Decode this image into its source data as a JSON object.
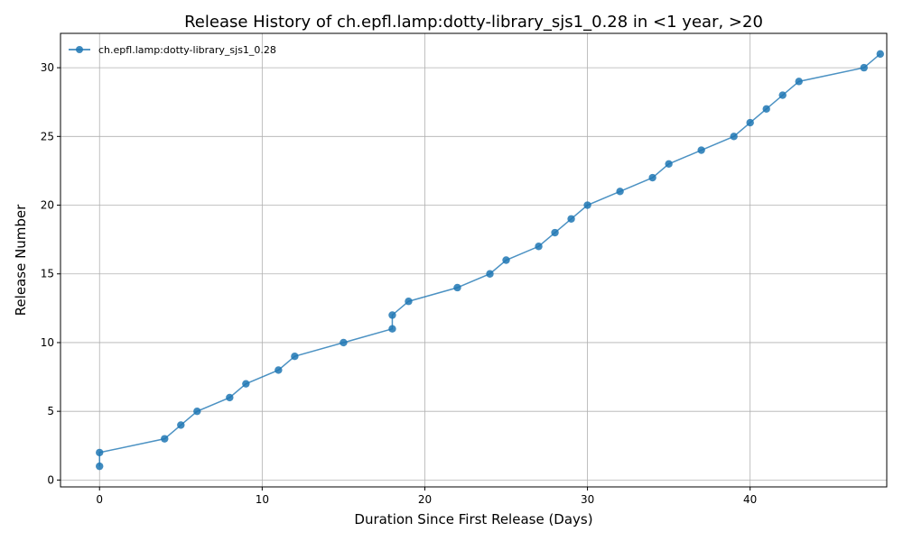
{
  "chart_data": {
    "type": "line",
    "title": "Release History of ch.epfl.lamp:dotty-library_sjs1_0.28 in <1 year, >20",
    "xlabel": "Duration Since First Release (Days)",
    "ylabel": "Release Number",
    "xlim": [
      -2.4,
      48.4
    ],
    "ylim": [
      -0.5,
      32.5
    ],
    "xticks": [
      0,
      10,
      20,
      30,
      40,
      50
    ],
    "yticks": [
      0,
      5,
      10,
      15,
      20,
      25,
      30
    ],
    "grid": true,
    "legend_position": "top-left",
    "series": [
      {
        "name": "ch.epfl.lamp:dotty-library_sjs1_0.28",
        "color": "#1f77b4",
        "x": [
          0,
          0,
          4,
          5,
          6,
          8,
          9,
          11,
          12,
          15,
          18,
          18,
          19,
          22,
          24,
          25,
          27,
          28,
          29,
          30,
          32,
          34,
          35,
          37,
          39,
          40,
          41,
          42,
          43,
          47,
          48
        ],
        "y": [
          1,
          2,
          3,
          4,
          5,
          6,
          7,
          8,
          9,
          10,
          11,
          12,
          13,
          14,
          15,
          16,
          17,
          18,
          19,
          20,
          21,
          22,
          23,
          24,
          25,
          26,
          27,
          28,
          29,
          30,
          31
        ]
      }
    ]
  }
}
